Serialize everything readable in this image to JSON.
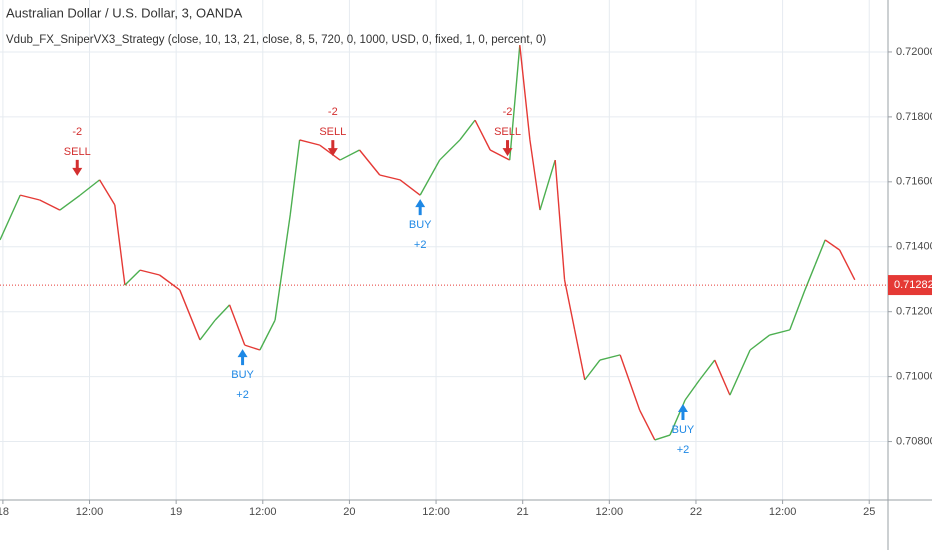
{
  "chart_data": {
    "type": "line",
    "title": "Australian Dollar / U.S. Dollar, 3, OANDA",
    "subtitle": "Vdub_FX_SniperVX3_Strategy (close, 10, 13, 21, close, 8, 5, 720, 0, 1000, USD, 0, fixed, 1, 0, percent, 0)",
    "x": [
      -0.4,
      2.4,
      5.1,
      7.9,
      10.7,
      13.4,
      15.5,
      16.9,
      19.0,
      21.7,
      24.5,
      27.3,
      29.4,
      31.4,
      33.5,
      35.6,
      37.7,
      39.8,
      41.1,
      43.9,
      46.7,
      49.4,
      52.2,
      55.0,
      57.8,
      60.5,
      63.3,
      65.4,
      67.5,
      70.2,
      71.6,
      73.0,
      74.4,
      76.5,
      77.8,
      79.2,
      80.6,
      82.7,
      85.5,
      88.2,
      90.3,
      92.4,
      94.5,
      96.5,
      98.6,
      100.7,
      103.5,
      106.2,
      109.0,
      111.1,
      112.5,
      113.9,
      115.9,
      118.0
    ],
    "values": [
      0.71421,
      0.71559,
      0.71544,
      0.71513,
      0.71559,
      0.71606,
      0.71529,
      0.71282,
      0.71328,
      0.71313,
      0.71267,
      0.71113,
      0.71174,
      0.71221,
      0.71097,
      0.71082,
      0.71174,
      0.71498,
      0.71729,
      0.71713,
      0.71667,
      0.71698,
      0.71621,
      0.71606,
      0.71559,
      0.71667,
      0.71729,
      0.7179,
      0.71698,
      0.71667,
      0.72021,
      0.71729,
      0.71513,
      0.71667,
      0.71298,
      0.71144,
      0.7099,
      0.71051,
      0.71067,
      0.70897,
      0.70805,
      0.7082,
      0.70928,
      0.7099,
      0.71051,
      0.70943,
      0.71082,
      0.71128,
      0.71144,
      0.71267,
      0.71344,
      0.71421,
      0.7139,
      0.71298
    ],
    "up_color": "#4caf50",
    "down_color": "#e53935",
    "xlim": [
      -0.4,
      122.6
    ],
    "ylim": [
      0.7062,
      0.7216
    ],
    "xticks": [
      {
        "value": 0,
        "label": "18"
      },
      {
        "value": 12,
        "label": "12:00"
      },
      {
        "value": 24,
        "label": "19"
      },
      {
        "value": 36,
        "label": "12:00"
      },
      {
        "value": 48,
        "label": "20"
      },
      {
        "value": 60,
        "label": "12:00"
      },
      {
        "value": 72,
        "label": "21"
      },
      {
        "value": 84,
        "label": "12:00"
      },
      {
        "value": 96,
        "label": "22"
      },
      {
        "value": 108,
        "label": "12:00"
      },
      {
        "value": 120,
        "label": "25"
      }
    ],
    "yticks": [
      {
        "value": 0.708,
        "label": "0.70800"
      },
      {
        "value": 0.71,
        "label": "0.71000"
      },
      {
        "value": 0.712,
        "label": "0.71200"
      },
      {
        "value": 0.714,
        "label": "0.71400"
      },
      {
        "value": 0.716,
        "label": "0.71600"
      },
      {
        "value": 0.718,
        "label": "0.71800"
      },
      {
        "value": 0.72,
        "label": "0.72000"
      }
    ],
    "grid": true,
    "last_price": {
      "value": 0.71282,
      "label": "0.71282",
      "color": "#e53935"
    },
    "signals": [
      {
        "side": "SELL",
        "qty": "-2",
        "x": 10.3,
        "value": 0.71606,
        "color": "#d32f2f"
      },
      {
        "side": "BUY",
        "qty": "+2",
        "x": 33.2,
        "value": 0.71097,
        "color": "#1e88e5"
      },
      {
        "side": "SELL",
        "qty": "-2",
        "x": 45.7,
        "value": 0.71667,
        "color": "#d32f2f"
      },
      {
        "side": "BUY",
        "qty": "+2",
        "x": 57.8,
        "value": 0.71559,
        "color": "#1e88e5"
      },
      {
        "side": "SELL",
        "qty": "-2",
        "x": 69.9,
        "value": 0.71667,
        "color": "#d32f2f"
      },
      {
        "side": "BUY",
        "qty": "+2",
        "x": 94.2,
        "value": 0.70928,
        "color": "#1e88e5"
      }
    ]
  }
}
